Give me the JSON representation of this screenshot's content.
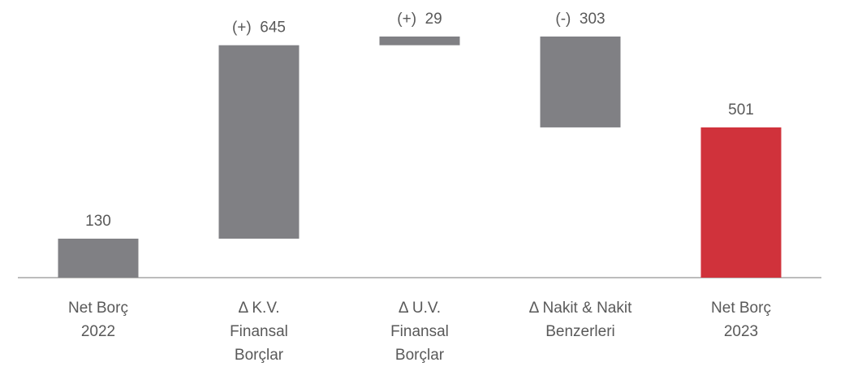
{
  "chart_data": {
    "type": "waterfall",
    "categories": [
      [
        "Net Borç",
        "2022"
      ],
      [
        "Δ K.V.",
        "Finansal",
        "Borçlar"
      ],
      [
        "Δ U.V.",
        "Finansal",
        "Borçlar"
      ],
      [
        "Δ Nakit & Nakit",
        "Benzerleri"
      ],
      [
        "Net Borç",
        "2023"
      ]
    ],
    "values": [
      130,
      645,
      29,
      -303,
      501
    ],
    "value_labels": [
      "130",
      "(+)  645",
      "(+)  29",
      "(-)  303",
      "501"
    ],
    "measure": [
      "absolute",
      "relative",
      "relative",
      "relative",
      "total"
    ],
    "colors": [
      "#808084",
      "#808084",
      "#808084",
      "#808084",
      "#d0323b"
    ]
  }
}
